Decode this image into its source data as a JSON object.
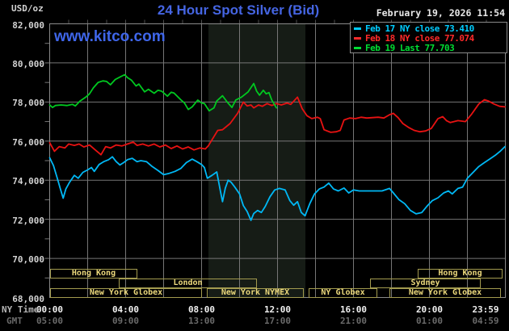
{
  "header": {
    "unit_label": "USD/oz",
    "title": "24 Hour Spot Silver (Bid)",
    "watermark": "www.kitco.com",
    "datetime": "February 19, 2026 11:54"
  },
  "legend": {
    "items": [
      {
        "label": "Feb 17 NY close",
        "value": "73.410",
        "color": "#00ccff"
      },
      {
        "label": "Feb 18 NY close",
        "value": "77.074",
        "color": "#ff2a2a"
      },
      {
        "label": "Feb 19 Last",
        "value": "77.703",
        "color": "#00dd33"
      }
    ]
  },
  "axes": {
    "y_tick_labels": [
      "82,000",
      "80,000",
      "78,000",
      "76,000",
      "74,000",
      "72,000",
      "70,000",
      "68,000"
    ],
    "x_rows": [
      {
        "label": "NY Time",
        "ticks": [
          "00:00",
          "04:00",
          "08:00",
          "12:00",
          "16:00",
          "20:00",
          "23:59"
        ]
      },
      {
        "label": "GMT",
        "ticks": [
          "05:00",
          "09:00",
          "13:00",
          "17:00",
          "21:00",
          "01:00",
          "04:59"
        ]
      }
    ]
  },
  "sessions": {
    "border_color": "#a39b4f",
    "text_color": "#ecd97c",
    "rows": [
      [
        {
          "label": "Hong Kong",
          "start": 0.02,
          "end": 4.62
        },
        {
          "label": "Hong Kong",
          "start": 19.38,
          "end": 23.85
        }
      ],
      [
        {
          "label": "London",
          "start": 3.64,
          "end": 10.91
        },
        {
          "label": "Sydney",
          "start": 16.87,
          "end": 22.7
        }
      ],
      [
        {
          "label": "New York Globex",
          "start": 0.02,
          "end": 8.02
        },
        {
          "label": "New York NYMEX",
          "start": 8.28,
          "end": 13.38
        },
        {
          "label": "NY Globex",
          "start": 13.64,
          "end": 17.26
        },
        {
          "label": "New York Globex",
          "start": 17.89,
          "end": 23.77
        }
      ]
    ]
  },
  "chart_data": {
    "type": "line",
    "title": "24 Hour Spot Silver (Bid)",
    "xlabel": "NY Time (hours 00:00-23:59)",
    "ylabel": "USD/oz (thousandths)",
    "xlim": [
      0,
      24
    ],
    "ylim": [
      68.0,
      82.0
    ],
    "grid": {
      "x_step_hours": 2,
      "y_step": 2.0
    },
    "nymex_band": {
      "start": 8.36,
      "end": 13.47,
      "color": "#161c16"
    },
    "series": [
      {
        "name": "Feb 17 (NY close 73.410)",
        "color": "#00b8f5",
        "points": [
          [
            0,
            75.15
          ],
          [
            0.2,
            74.75
          ],
          [
            0.4,
            74.1
          ],
          [
            0.55,
            73.6
          ],
          [
            0.71,
            73.08
          ],
          [
            0.85,
            73.55
          ],
          [
            1.05,
            73.9
          ],
          [
            1.3,
            74.25
          ],
          [
            1.5,
            74.1
          ],
          [
            1.75,
            74.4
          ],
          [
            1.95,
            74.5
          ],
          [
            2.2,
            74.65
          ],
          [
            2.35,
            74.45
          ],
          [
            2.6,
            74.8
          ],
          [
            2.85,
            74.95
          ],
          [
            3.1,
            75.05
          ],
          [
            3.3,
            75.2
          ],
          [
            3.5,
            74.95
          ],
          [
            3.7,
            74.78
          ],
          [
            3.9,
            74.9
          ],
          [
            4.1,
            75.05
          ],
          [
            4.35,
            75.12
          ],
          [
            4.6,
            74.95
          ],
          [
            4.8,
            75.0
          ],
          [
            5.1,
            74.95
          ],
          [
            5.4,
            74.7
          ],
          [
            5.7,
            74.5
          ],
          [
            6.0,
            74.28
          ],
          [
            6.3,
            74.35
          ],
          [
            6.6,
            74.45
          ],
          [
            6.9,
            74.6
          ],
          [
            7.2,
            74.9
          ],
          [
            7.5,
            75.08
          ],
          [
            7.75,
            74.95
          ],
          [
            8.0,
            74.8
          ],
          [
            8.15,
            74.65
          ],
          [
            8.3,
            74.1
          ],
          [
            8.55,
            74.25
          ],
          [
            8.8,
            74.42
          ],
          [
            9.0,
            73.4
          ],
          [
            9.1,
            72.9
          ],
          [
            9.25,
            73.6
          ],
          [
            9.4,
            74.0
          ],
          [
            9.55,
            73.9
          ],
          [
            9.75,
            73.65
          ],
          [
            10.0,
            73.3
          ],
          [
            10.2,
            72.7
          ],
          [
            10.4,
            72.4
          ],
          [
            10.6,
            71.95
          ],
          [
            10.75,
            72.3
          ],
          [
            10.95,
            72.45
          ],
          [
            11.15,
            72.35
          ],
          [
            11.35,
            72.65
          ],
          [
            11.6,
            73.15
          ],
          [
            11.85,
            73.5
          ],
          [
            12.1,
            73.58
          ],
          [
            12.4,
            73.5
          ],
          [
            12.65,
            72.95
          ],
          [
            12.85,
            72.72
          ],
          [
            13.05,
            72.9
          ],
          [
            13.25,
            72.35
          ],
          [
            13.45,
            72.18
          ],
          [
            13.7,
            72.8
          ],
          [
            13.95,
            73.3
          ],
          [
            14.2,
            73.55
          ],
          [
            14.45,
            73.65
          ],
          [
            14.7,
            73.85
          ],
          [
            14.95,
            73.55
          ],
          [
            15.2,
            73.45
          ],
          [
            15.5,
            73.6
          ],
          [
            15.75,
            73.35
          ],
          [
            16.0,
            73.5
          ],
          [
            16.3,
            73.45
          ],
          [
            16.7,
            73.45
          ],
          [
            17.1,
            73.45
          ],
          [
            17.5,
            73.45
          ],
          [
            17.9,
            73.58
          ],
          [
            18.1,
            73.35
          ],
          [
            18.4,
            73.0
          ],
          [
            18.7,
            72.8
          ],
          [
            19.0,
            72.45
          ],
          [
            19.3,
            72.28
          ],
          [
            19.6,
            72.35
          ],
          [
            19.9,
            72.7
          ],
          [
            20.15,
            72.95
          ],
          [
            20.45,
            73.1
          ],
          [
            20.75,
            73.35
          ],
          [
            21.0,
            73.45
          ],
          [
            21.2,
            73.3
          ],
          [
            21.5,
            73.58
          ],
          [
            21.75,
            73.65
          ],
          [
            22.0,
            74.1
          ],
          [
            22.3,
            74.4
          ],
          [
            22.6,
            74.7
          ],
          [
            22.9,
            74.9
          ],
          [
            23.2,
            75.1
          ],
          [
            23.5,
            75.3
          ],
          [
            23.75,
            75.5
          ],
          [
            23.98,
            75.72
          ]
        ]
      },
      {
        "name": "Feb 18 (NY close 77.074)",
        "color": "#e81212",
        "points": [
          [
            0,
            75.92
          ],
          [
            0.25,
            75.48
          ],
          [
            0.5,
            75.72
          ],
          [
            0.8,
            75.65
          ],
          [
            1.0,
            75.85
          ],
          [
            1.3,
            75.78
          ],
          [
            1.55,
            75.85
          ],
          [
            1.8,
            75.7
          ],
          [
            2.1,
            75.8
          ],
          [
            2.4,
            75.55
          ],
          [
            2.7,
            75.3
          ],
          [
            2.95,
            75.72
          ],
          [
            3.2,
            75.65
          ],
          [
            3.5,
            75.8
          ],
          [
            3.8,
            75.75
          ],
          [
            4.1,
            75.85
          ],
          [
            4.4,
            75.95
          ],
          [
            4.6,
            75.78
          ],
          [
            4.9,
            75.85
          ],
          [
            5.2,
            75.75
          ],
          [
            5.5,
            75.85
          ],
          [
            5.8,
            75.7
          ],
          [
            6.1,
            75.8
          ],
          [
            6.4,
            75.62
          ],
          [
            6.7,
            75.75
          ],
          [
            7.0,
            75.6
          ],
          [
            7.3,
            75.7
          ],
          [
            7.6,
            75.55
          ],
          [
            7.9,
            75.65
          ],
          [
            8.2,
            75.6
          ],
          [
            8.35,
            75.75
          ],
          [
            8.6,
            76.15
          ],
          [
            8.85,
            76.55
          ],
          [
            9.1,
            76.58
          ],
          [
            9.5,
            76.9
          ],
          [
            9.9,
            77.42
          ],
          [
            10.2,
            78.0
          ],
          [
            10.4,
            77.8
          ],
          [
            10.6,
            77.85
          ],
          [
            10.75,
            77.7
          ],
          [
            11.0,
            77.85
          ],
          [
            11.2,
            77.78
          ],
          [
            11.45,
            77.92
          ],
          [
            11.7,
            77.82
          ],
          [
            11.95,
            77.92
          ],
          [
            12.2,
            77.85
          ],
          [
            12.5,
            77.95
          ],
          [
            12.7,
            77.88
          ],
          [
            13.05,
            78.25
          ],
          [
            13.3,
            77.65
          ],
          [
            13.55,
            77.3
          ],
          [
            13.8,
            77.15
          ],
          [
            14.1,
            77.22
          ],
          [
            14.25,
            77.15
          ],
          [
            14.45,
            76.58
          ],
          [
            14.8,
            76.45
          ],
          [
            15.1,
            76.48
          ],
          [
            15.3,
            76.55
          ],
          [
            15.5,
            77.08
          ],
          [
            15.8,
            77.18
          ],
          [
            16.1,
            77.15
          ],
          [
            16.4,
            77.22
          ],
          [
            16.7,
            77.18
          ],
          [
            17.0,
            77.2
          ],
          [
            17.3,
            77.22
          ],
          [
            17.6,
            77.18
          ],
          [
            17.9,
            77.35
          ],
          [
            18.1,
            77.42
          ],
          [
            18.35,
            77.2
          ],
          [
            18.6,
            76.9
          ],
          [
            18.9,
            76.7
          ],
          [
            19.2,
            76.55
          ],
          [
            19.5,
            76.48
          ],
          [
            19.8,
            76.52
          ],
          [
            20.1,
            76.65
          ],
          [
            20.45,
            77.15
          ],
          [
            20.7,
            77.25
          ],
          [
            20.9,
            77.05
          ],
          [
            21.1,
            76.95
          ],
          [
            21.5,
            77.05
          ],
          [
            21.9,
            77.0
          ],
          [
            22.2,
            77.35
          ],
          [
            22.6,
            77.9
          ],
          [
            22.9,
            78.12
          ],
          [
            23.1,
            78.05
          ],
          [
            23.4,
            77.9
          ],
          [
            23.7,
            77.78
          ],
          [
            23.98,
            77.75
          ]
        ]
      },
      {
        "name": "Feb 19 (Last 77.703)",
        "color": "#00c820",
        "points": [
          [
            0,
            77.85
          ],
          [
            0.15,
            77.72
          ],
          [
            0.3,
            77.82
          ],
          [
            0.6,
            77.85
          ],
          [
            0.9,
            77.82
          ],
          [
            1.2,
            77.88
          ],
          [
            1.35,
            77.8
          ],
          [
            1.6,
            78.05
          ],
          [
            1.9,
            78.25
          ],
          [
            2.1,
            78.42
          ],
          [
            2.3,
            78.72
          ],
          [
            2.55,
            79.0
          ],
          [
            2.8,
            79.08
          ],
          [
            3.0,
            79.05
          ],
          [
            3.2,
            78.88
          ],
          [
            3.45,
            79.15
          ],
          [
            3.7,
            79.28
          ],
          [
            3.95,
            79.4
          ],
          [
            4.1,
            79.25
          ],
          [
            4.3,
            79.12
          ],
          [
            4.55,
            78.82
          ],
          [
            4.7,
            78.92
          ],
          [
            5.0,
            78.52
          ],
          [
            5.2,
            78.65
          ],
          [
            5.5,
            78.45
          ],
          [
            5.7,
            78.6
          ],
          [
            5.9,
            78.55
          ],
          [
            6.2,
            78.3
          ],
          [
            6.4,
            78.5
          ],
          [
            6.55,
            78.46
          ],
          [
            6.9,
            78.12
          ],
          [
            7.1,
            77.95
          ],
          [
            7.3,
            77.62
          ],
          [
            7.5,
            77.75
          ],
          [
            7.8,
            78.1
          ],
          [
            8.0,
            77.95
          ],
          [
            8.15,
            77.92
          ],
          [
            8.4,
            77.55
          ],
          [
            8.65,
            77.7
          ],
          [
            8.8,
            78.05
          ],
          [
            9.1,
            78.32
          ],
          [
            9.35,
            78.0
          ],
          [
            9.6,
            77.72
          ],
          [
            9.8,
            78.1
          ],
          [
            10.1,
            78.25
          ],
          [
            10.45,
            78.52
          ],
          [
            10.75,
            78.95
          ],
          [
            10.9,
            78.55
          ],
          [
            11.05,
            78.35
          ],
          [
            11.25,
            78.6
          ],
          [
            11.4,
            78.42
          ],
          [
            11.55,
            78.48
          ],
          [
            11.7,
            78.1
          ],
          [
            11.85,
            77.85
          ],
          [
            11.94,
            77.7
          ]
        ]
      }
    ]
  }
}
